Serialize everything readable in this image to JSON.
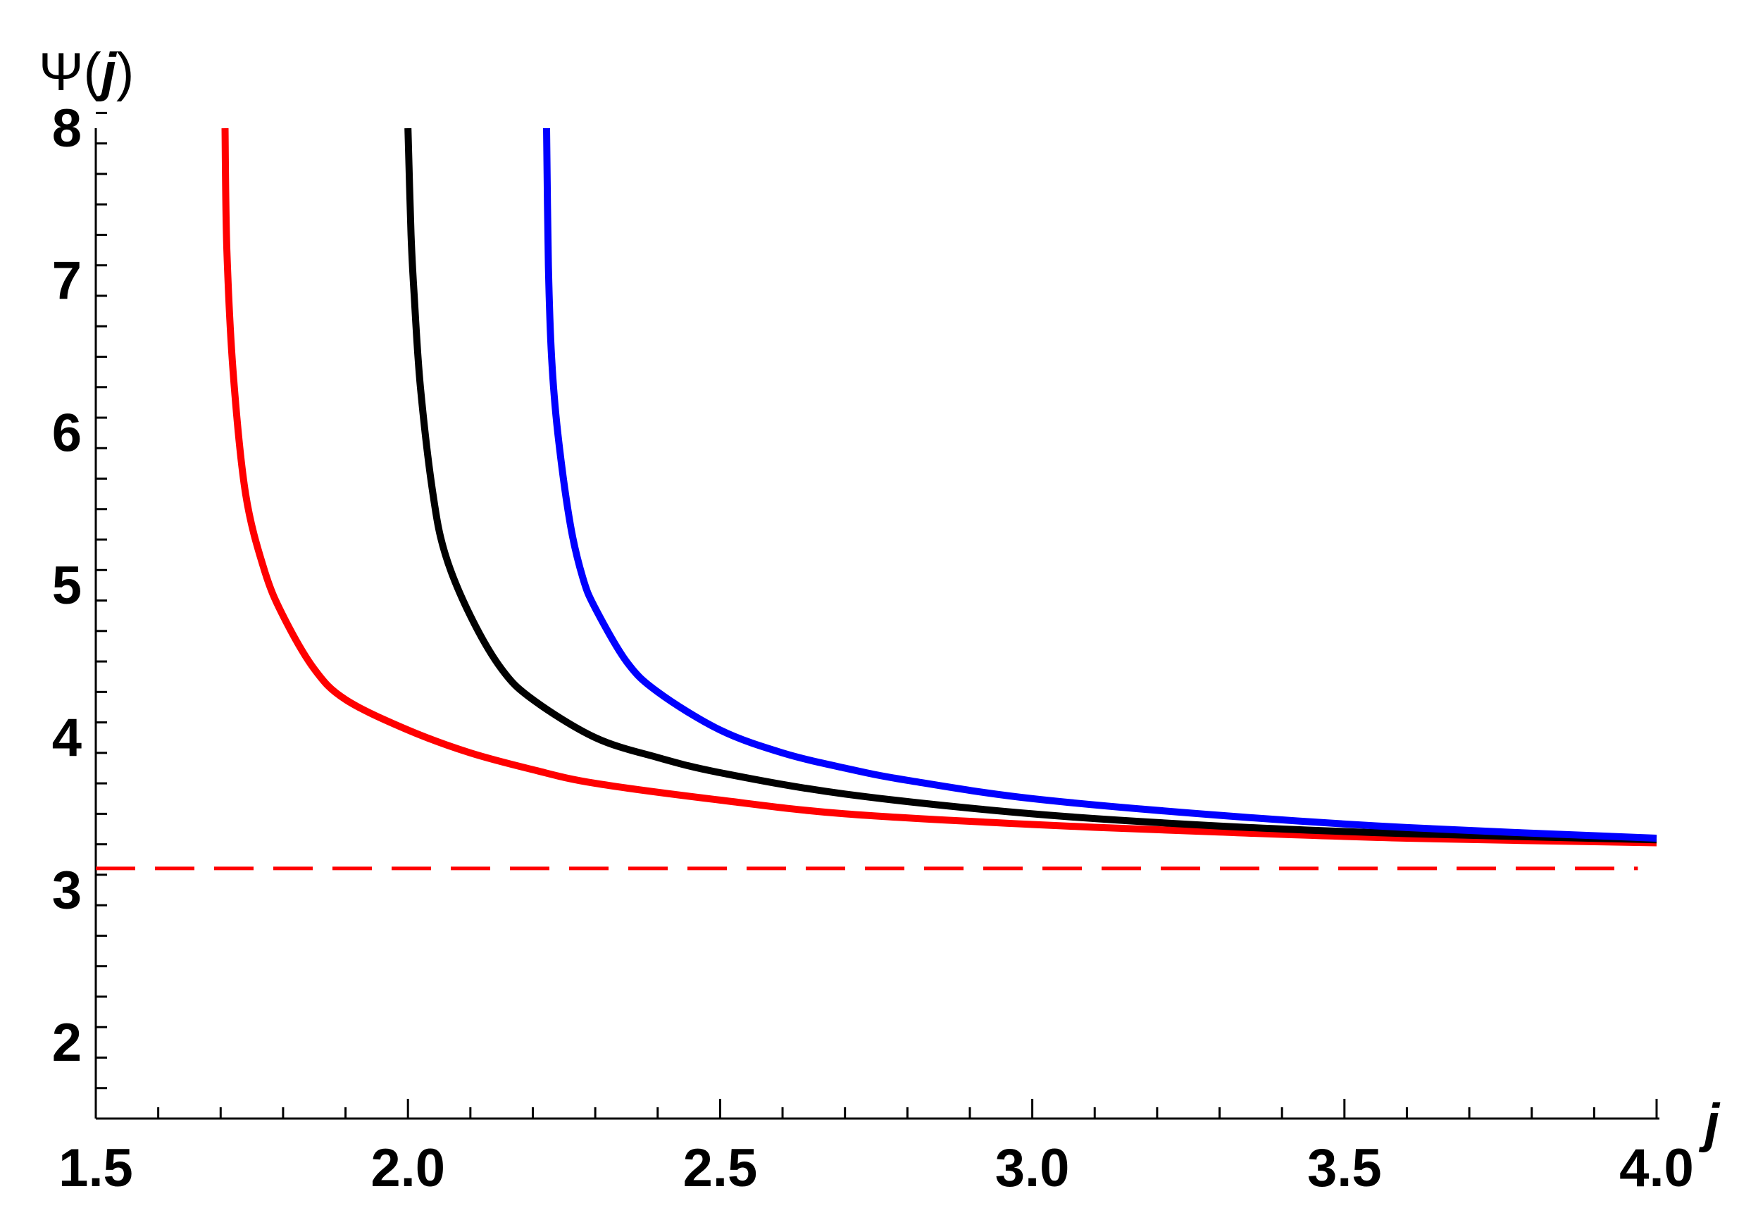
{
  "chart_data": {
    "type": "line",
    "title": "",
    "xlabel": "j",
    "ylabel_prefix": "Ψ(",
    "ylabel_var": "j",
    "ylabel_suffix": ")",
    "xlim": [
      1.5,
      4.0
    ],
    "ylim": [
      1.5,
      8.0
    ],
    "x_ticks": [
      "1.5",
      "2.0",
      "2.5",
      "3.0",
      "3.5",
      "4.0"
    ],
    "y_ticks": [
      "2",
      "3",
      "4",
      "5",
      "6",
      "7",
      "8"
    ],
    "grid": false,
    "legend": "none",
    "series": [
      {
        "color": "#ff0000",
        "style": "solid",
        "x": [
          1.707,
          1.71,
          1.72,
          1.74,
          1.77,
          1.8,
          1.85,
          1.9,
          2.0,
          2.1,
          2.2,
          2.3,
          2.5,
          2.7,
          3.0,
          3.3,
          3.6,
          4.0
        ],
        "y": [
          8.0,
          7.2,
          6.4,
          5.6,
          5.1,
          4.8,
          4.45,
          4.25,
          4.05,
          3.9,
          3.79,
          3.7,
          3.59,
          3.5,
          3.43,
          3.38,
          3.34,
          3.31
        ]
      },
      {
        "color": "#000000",
        "style": "solid",
        "x": [
          2.0,
          2.005,
          2.01,
          2.02,
          2.04,
          2.06,
          2.1,
          2.15,
          2.2,
          2.3,
          2.4,
          2.5,
          2.7,
          3.0,
          3.3,
          3.6,
          4.0
        ],
        "y": [
          8.0,
          7.3,
          6.9,
          6.3,
          5.6,
          5.2,
          4.8,
          4.45,
          4.25,
          4.0,
          3.87,
          3.77,
          3.63,
          3.5,
          3.42,
          3.37,
          3.33
        ]
      },
      {
        "color": "#0000ff",
        "style": "solid",
        "x": [
          2.222,
          2.225,
          2.23,
          2.24,
          2.26,
          2.28,
          2.3,
          2.35,
          2.4,
          2.5,
          2.6,
          2.7,
          2.8,
          3.0,
          3.3,
          3.6,
          4.0
        ],
        "y": [
          8.0,
          7.1,
          6.5,
          6.0,
          5.4,
          5.05,
          4.85,
          4.5,
          4.3,
          4.05,
          3.9,
          3.8,
          3.72,
          3.6,
          3.49,
          3.41,
          3.34
        ]
      },
      {
        "color": "#ff0000",
        "style": "dashed",
        "x": [
          1.5,
          3.97
        ],
        "y": [
          3.1416,
          3.1416
        ]
      }
    ]
  }
}
